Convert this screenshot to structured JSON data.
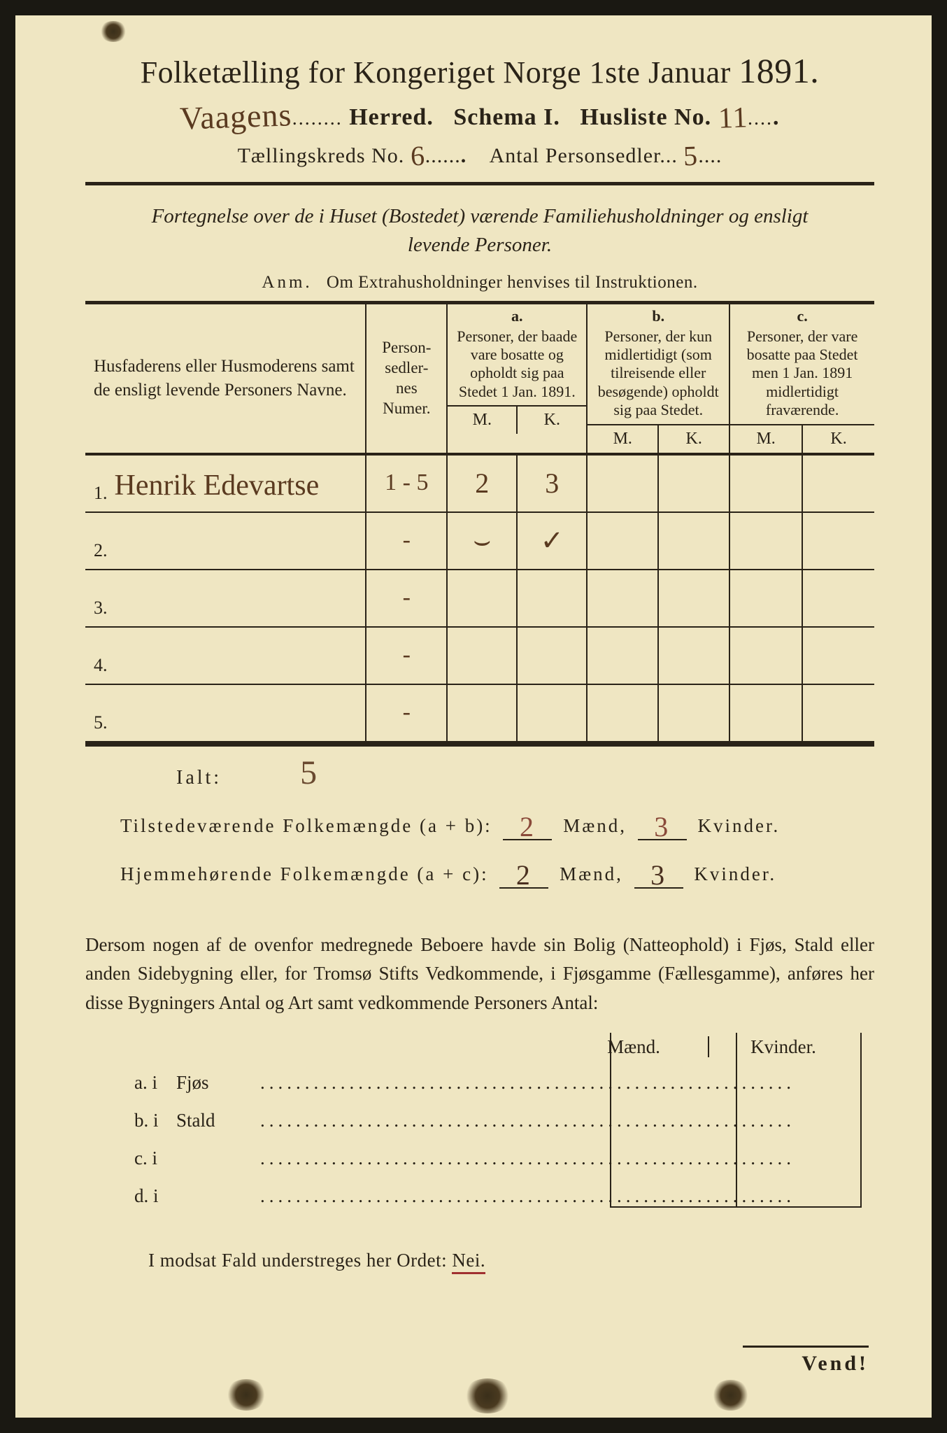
{
  "header": {
    "title_pre": "Folketælling for Kongeriget Norge 1ste Januar ",
    "year": "1891.",
    "herred_handwritten": "Vaagens",
    "label_herred": "Herred.",
    "label_schema": "Schema I.",
    "label_husliste": "Husliste No.",
    "husliste_no_handwritten": "11",
    "label_kreds": "Tællingskreds No.",
    "kreds_no_handwritten": "6",
    "label_antal": "Antal Personsedler",
    "antal_handwritten": "5"
  },
  "subtitle": {
    "line1": "Fortegnelse over de i Huset (Bostedet) værende Familiehusholdninger og ensligt",
    "line2": "levende Personer.",
    "anm_label": "Anm.",
    "anm_text": "Om Extrahusholdninger henvises til Instruktionen."
  },
  "table": {
    "col_name": "Husfaderens eller Husmoderens samt de ensligt levende Personers Navne.",
    "col_num": "Person-\nsedler-\nnes\nNumer.",
    "group_a_letter": "a.",
    "group_a_text": "Personer, der baade vare bosatte og opholdt sig paa Stedet 1 Jan. 1891.",
    "group_b_letter": "b.",
    "group_b_text": "Personer, der kun midlertidigt (som tilreisende eller besøgende) opholdt sig paa Stedet.",
    "group_c_letter": "c.",
    "group_c_text": "Personer, der vare bosatte paa Stedet men 1 Jan. 1891 midlertidigt fraværende.",
    "mk_m": "M.",
    "mk_k": "K.",
    "rows": [
      {
        "idx": "1.",
        "name_hw": "Henrik Edevartse",
        "num_hw": "1 - 5",
        "a_m": "2",
        "a_k": "3",
        "b_m": "",
        "b_k": "",
        "c_m": "",
        "c_k": ""
      },
      {
        "idx": "2.",
        "name_hw": "",
        "num_hw": "-",
        "a_m": "⌣",
        "a_k": "✓",
        "b_m": "",
        "b_k": "",
        "c_m": "",
        "c_k": ""
      },
      {
        "idx": "3.",
        "name_hw": "",
        "num_hw": "-",
        "a_m": "",
        "a_k": "",
        "b_m": "",
        "b_k": "",
        "c_m": "",
        "c_k": ""
      },
      {
        "idx": "4.",
        "name_hw": "",
        "num_hw": "-",
        "a_m": "",
        "a_k": "",
        "b_m": "",
        "b_k": "",
        "c_m": "",
        "c_k": ""
      },
      {
        "idx": "5.",
        "name_hw": "",
        "num_hw": "-",
        "a_m": "",
        "a_k": "",
        "b_m": "",
        "b_k": "",
        "c_m": "",
        "c_k": ""
      }
    ]
  },
  "totals": {
    "ialt_label": "Ialt:",
    "ialt_hw": "5",
    "tilstede_label": "Tilstedeværende Folkemængde (a + b):",
    "tilstede_m": "2",
    "tilstede_k": "3",
    "hjemme_label": "Hjemmehørende Folkemængde (a + c):",
    "hjemme_m": "2",
    "hjemme_k": "3",
    "maend": "Mænd,",
    "kvinder": "Kvinder."
  },
  "paragraph": {
    "text": "Dersom nogen af de ovenfor medregnede Beboere havde sin Bolig (Natteophold) i Fjøs, Stald eller anden Sidebygning eller, for Tromsø Stifts Vedkommende, i Fjøsgamme (Fællesgamme), anføres her disse Bygningers Antal og Art samt vedkommende Personers Antal:"
  },
  "mk2": {
    "maend": "Mænd.",
    "kvinder": "Kvinder."
  },
  "dlines": [
    {
      "tag": "a.  i",
      "word": "Fjøs"
    },
    {
      "tag": "b.  i",
      "word": "Stald"
    },
    {
      "tag": "c.  i",
      "word": ""
    },
    {
      "tag": "d.  i",
      "word": ""
    }
  ],
  "nei": {
    "pre": "I modsat Fald understreges her Ordet: ",
    "word": "Nei."
  },
  "vend": "Vend!",
  "colors": {
    "paper": "#efe6c2",
    "ink": "#2a2318",
    "handwriting": "#5a3a20",
    "red_underline": "#a03030",
    "pink_hw": "#8a4a3a"
  }
}
